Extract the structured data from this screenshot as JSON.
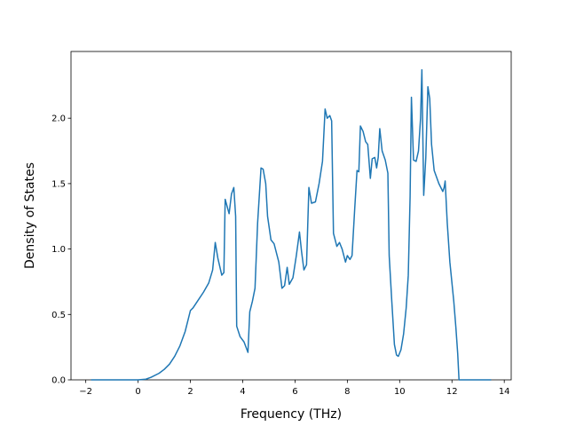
{
  "chart_data": {
    "type": "line",
    "xlabel": "Frequency (THz)",
    "ylabel": "Density of States",
    "color": "#1f77b4",
    "x": [
      -1.8,
      0,
      0.3,
      0.5,
      0.8,
      1.0,
      1.2,
      1.4,
      1.6,
      1.8,
      1.9,
      2.0,
      2.1,
      2.3,
      2.5,
      2.7,
      2.85,
      2.95,
      3.05,
      3.2,
      3.28,
      3.33,
      3.48,
      3.57,
      3.66,
      3.73,
      3.77,
      3.9,
      4.05,
      4.2,
      4.27,
      4.37,
      4.47,
      4.57,
      4.7,
      4.78,
      4.88,
      4.95,
      5.08,
      5.2,
      5.38,
      5.5,
      5.6,
      5.7,
      5.78,
      5.92,
      6.05,
      6.17,
      6.25,
      6.34,
      6.44,
      6.53,
      6.63,
      6.78,
      6.92,
      7.05,
      7.15,
      7.23,
      7.33,
      7.4,
      7.47,
      7.6,
      7.7,
      7.8,
      7.93,
      8.0,
      8.1,
      8.18,
      8.28,
      8.37,
      8.44,
      8.5,
      8.6,
      8.7,
      8.78,
      8.88,
      8.95,
      9.05,
      9.12,
      9.18,
      9.24,
      9.33,
      9.45,
      9.55,
      9.6,
      9.7,
      9.8,
      9.88,
      9.95,
      10.05,
      10.15,
      10.25,
      10.33,
      10.4,
      10.45,
      10.53,
      10.63,
      10.72,
      10.8,
      10.85,
      10.92,
      11.0,
      11.08,
      11.15,
      11.22,
      11.32,
      11.5,
      11.65,
      11.7,
      11.74,
      11.82,
      11.92,
      12.07,
      12.15,
      12.22,
      12.27,
      13.5
    ],
    "values": [
      0,
      0,
      0.005,
      0.02,
      0.05,
      0.08,
      0.12,
      0.18,
      0.26,
      0.37,
      0.45,
      0.53,
      0.55,
      0.61,
      0.67,
      0.74,
      0.84,
      1.05,
      0.93,
      0.8,
      0.82,
      1.38,
      1.27,
      1.42,
      1.47,
      1.25,
      0.41,
      0.33,
      0.29,
      0.21,
      0.52,
      0.6,
      0.7,
      1.2,
      1.62,
      1.61,
      1.5,
      1.25,
      1.07,
      1.04,
      0.9,
      0.7,
      0.72,
      0.86,
      0.73,
      0.78,
      0.95,
      1.13,
      0.98,
      0.84,
      0.88,
      1.47,
      1.35,
      1.36,
      1.5,
      1.67,
      2.07,
      2.0,
      2.02,
      1.98,
      1.12,
      1.02,
      1.05,
      1.0,
      0.9,
      0.95,
      0.92,
      0.95,
      1.3,
      1.6,
      1.59,
      1.94,
      1.9,
      1.82,
      1.8,
      1.54,
      1.69,
      1.7,
      1.62,
      1.7,
      1.92,
      1.75,
      1.68,
      1.58,
      0.95,
      0.6,
      0.27,
      0.19,
      0.18,
      0.23,
      0.35,
      0.55,
      0.8,
      1.4,
      2.16,
      1.68,
      1.67,
      1.75,
      2.0,
      2.37,
      1.41,
      1.7,
      2.24,
      2.15,
      1.8,
      1.6,
      1.5,
      1.44,
      1.47,
      1.52,
      1.2,
      0.9,
      0.6,
      0.4,
      0.2,
      0.0,
      0
    ],
    "xlim": [
      -2.565,
      14.265
    ],
    "ylim": [
      0,
      2.51
    ],
    "xticks": [
      {
        "value": -2,
        "label": "−2"
      },
      0,
      2,
      4,
      6,
      8,
      10,
      12,
      14
    ],
    "yticks": [
      {
        "value": 0,
        "label": "0.0"
      },
      0.5,
      {
        "value": 1,
        "label": "1.0"
      },
      1.5,
      {
        "value": 2,
        "label": "2.0"
      }
    ],
    "grid": false
  }
}
